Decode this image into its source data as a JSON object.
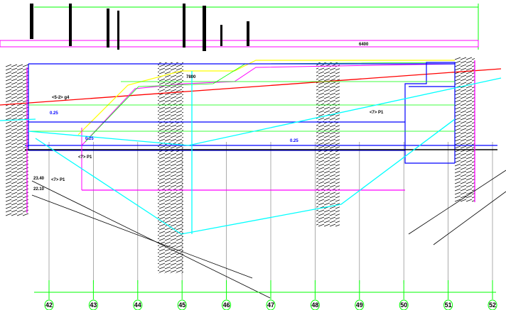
{
  "drawing": {
    "axes": [
      "42",
      "43",
      "44",
      "45",
      "46",
      "47",
      "48",
      "49",
      "50",
      "51",
      "52"
    ],
    "top_dims": {
      "d1": "7800",
      "d2": "6400"
    },
    "labels": {
      "slope1": "0.25",
      "slope2": "0.25",
      "slope3": "0.25",
      "elev_left1": "23.40",
      "elev_left2": "22.10",
      "stratum_left": "<7>  P1",
      "stratum_mid": "<7>  P1",
      "stratum_right": "<7>  P1",
      "layer_left": "<5-2>  g4"
    },
    "colors": {
      "axis": "#00ff00",
      "structure": "#0000ff",
      "water": "#00ffff",
      "section": "#ff00ff",
      "ground": "#ff0000",
      "cut": "#ffff00"
    }
  }
}
